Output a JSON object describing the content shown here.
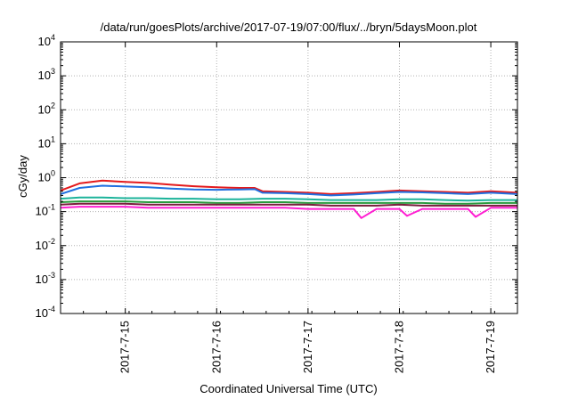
{
  "chart_data": {
    "type": "line",
    "title": "/data/run/goesPlots/archive/2017-07-19/07:00/flux/../bryn/5daysMoon.plot",
    "xlabel": "Coordinated Universal Time (UTC)",
    "ylabel": "cGy/day",
    "y_scale": "log",
    "ylim": [
      0.0001,
      10000
    ],
    "xlim": [
      "2017-07-14 07:00",
      "2017-07-19 07:00"
    ],
    "grid": true,
    "y_ticks": [
      {
        "value": 0.0001,
        "base": "10",
        "exp": "-4"
      },
      {
        "value": 0.001,
        "base": "10",
        "exp": "-3"
      },
      {
        "value": 0.01,
        "base": "10",
        "exp": "-2"
      },
      {
        "value": 0.1,
        "base": "10",
        "exp": "-1"
      },
      {
        "value": 1,
        "base": "10",
        "exp": "0"
      },
      {
        "value": 10,
        "base": "10",
        "exp": "1"
      },
      {
        "value": 100,
        "base": "10",
        "exp": "2"
      },
      {
        "value": 1000,
        "base": "10",
        "exp": "3"
      },
      {
        "value": 10000,
        "base": "10",
        "exp": "4"
      }
    ],
    "x_ticks": [
      {
        "value": "2017-07-15 00:00",
        "label": "2017-7-15"
      },
      {
        "value": "2017-07-16 00:00",
        "label": "2017-7-16"
      },
      {
        "value": "2017-07-17 00:00",
        "label": "2017-7-17"
      },
      {
        "value": "2017-07-18 00:00",
        "label": "2017-7-18"
      },
      {
        "value": "2017-07-19 00:00",
        "label": "2017-7-19"
      }
    ],
    "series": [
      {
        "color": "#e41a1c",
        "x": [
          "2017-07-14 07:00",
          "2017-07-14 12:00",
          "2017-07-14 18:00",
          "2017-07-15 00:00",
          "2017-07-15 06:00",
          "2017-07-15 12:00",
          "2017-07-15 18:00",
          "2017-07-16 00:00",
          "2017-07-16 06:00",
          "2017-07-16 10:00",
          "2017-07-16 12:00",
          "2017-07-16 18:00",
          "2017-07-17 00:00",
          "2017-07-17 06:00",
          "2017-07-17 12:00",
          "2017-07-17 18:00",
          "2017-07-18 00:00",
          "2017-07-18 06:00",
          "2017-07-18 12:00",
          "2017-07-18 18:00",
          "2017-07-19 00:00",
          "2017-07-19 07:00"
        ],
        "y": [
          0.42,
          0.68,
          0.82,
          0.75,
          0.7,
          0.62,
          0.56,
          0.52,
          0.5,
          0.5,
          0.4,
          0.38,
          0.36,
          0.33,
          0.35,
          0.38,
          0.42,
          0.4,
          0.38,
          0.36,
          0.4,
          0.36
        ]
      },
      {
        "color": "#1f6fe0",
        "x": [
          "2017-07-14 07:00",
          "2017-07-14 12:00",
          "2017-07-14 18:00",
          "2017-07-15 00:00",
          "2017-07-15 06:00",
          "2017-07-15 12:00",
          "2017-07-15 18:00",
          "2017-07-16 00:00",
          "2017-07-16 06:00",
          "2017-07-16 10:00",
          "2017-07-16 12:00",
          "2017-07-16 18:00",
          "2017-07-17 00:00",
          "2017-07-17 06:00",
          "2017-07-17 12:00",
          "2017-07-17 18:00",
          "2017-07-18 00:00",
          "2017-07-18 06:00",
          "2017-07-18 12:00",
          "2017-07-18 18:00",
          "2017-07-19 00:00",
          "2017-07-19 07:00"
        ],
        "y": [
          0.33,
          0.5,
          0.58,
          0.55,
          0.52,
          0.48,
          0.45,
          0.44,
          0.45,
          0.46,
          0.36,
          0.35,
          0.33,
          0.3,
          0.32,
          0.35,
          0.38,
          0.37,
          0.35,
          0.33,
          0.36,
          0.33
        ]
      },
      {
        "color": "#1bb39a",
        "x": [
          "2017-07-14 07:00",
          "2017-07-14 12:00",
          "2017-07-14 18:00",
          "2017-07-15 00:00",
          "2017-07-15 06:00",
          "2017-07-15 12:00",
          "2017-07-15 18:00",
          "2017-07-16 00:00",
          "2017-07-16 06:00",
          "2017-07-16 12:00",
          "2017-07-16 18:00",
          "2017-07-17 00:00",
          "2017-07-17 06:00",
          "2017-07-17 12:00",
          "2017-07-17 18:00",
          "2017-07-18 00:00",
          "2017-07-18 06:00",
          "2017-07-18 12:00",
          "2017-07-18 18:00",
          "2017-07-19 00:00",
          "2017-07-19 07:00"
        ],
        "y": [
          0.24,
          0.26,
          0.26,
          0.25,
          0.25,
          0.24,
          0.24,
          0.23,
          0.23,
          0.24,
          0.24,
          0.23,
          0.22,
          0.22,
          0.22,
          0.23,
          0.23,
          0.22,
          0.21,
          0.22,
          0.22
        ]
      },
      {
        "color": "#2a9a3e",
        "x": [
          "2017-07-14 07:00",
          "2017-07-14 12:00",
          "2017-07-14 18:00",
          "2017-07-15 00:00",
          "2017-07-15 06:00",
          "2017-07-15 12:00",
          "2017-07-15 18:00",
          "2017-07-16 00:00",
          "2017-07-16 06:00",
          "2017-07-16 12:00",
          "2017-07-16 18:00",
          "2017-07-17 00:00",
          "2017-07-17 06:00",
          "2017-07-17 12:00",
          "2017-07-17 18:00",
          "2017-07-18 00:00",
          "2017-07-18 06:00",
          "2017-07-18 12:00",
          "2017-07-18 18:00",
          "2017-07-19 00:00",
          "2017-07-19 07:00"
        ],
        "y": [
          0.19,
          0.2,
          0.2,
          0.2,
          0.19,
          0.19,
          0.19,
          0.18,
          0.18,
          0.19,
          0.19,
          0.18,
          0.18,
          0.18,
          0.18,
          0.18,
          0.18,
          0.17,
          0.17,
          0.18,
          0.18
        ]
      },
      {
        "color": "#7a1f3d",
        "x": [
          "2017-07-14 07:00",
          "2017-07-14 12:00",
          "2017-07-14 18:00",
          "2017-07-15 00:00",
          "2017-07-15 06:00",
          "2017-07-15 12:00",
          "2017-07-15 18:00",
          "2017-07-16 00:00",
          "2017-07-16 06:00",
          "2017-07-16 12:00",
          "2017-07-16 18:00",
          "2017-07-17 00:00",
          "2017-07-17 06:00",
          "2017-07-17 12:00",
          "2017-07-17 18:00",
          "2017-07-18 00:00",
          "2017-07-18 06:00",
          "2017-07-18 12:00",
          "2017-07-18 18:00",
          "2017-07-19 00:00",
          "2017-07-19 07:00"
        ],
        "y": [
          0.16,
          0.17,
          0.17,
          0.17,
          0.16,
          0.16,
          0.16,
          0.16,
          0.16,
          0.16,
          0.16,
          0.16,
          0.15,
          0.15,
          0.15,
          0.16,
          0.15,
          0.15,
          0.15,
          0.15,
          0.15
        ]
      },
      {
        "color": "#ff1fd2",
        "x": [
          "2017-07-14 07:00",
          "2017-07-14 12:00",
          "2017-07-14 18:00",
          "2017-07-15 00:00",
          "2017-07-15 06:00",
          "2017-07-15 12:00",
          "2017-07-15 18:00",
          "2017-07-16 00:00",
          "2017-07-16 06:00",
          "2017-07-16 12:00",
          "2017-07-16 18:00",
          "2017-07-17 00:00",
          "2017-07-17 06:00",
          "2017-07-17 12:00",
          "2017-07-17 14:00",
          "2017-07-17 18:00",
          "2017-07-18 00:00",
          "2017-07-18 02:00",
          "2017-07-18 06:00",
          "2017-07-18 12:00",
          "2017-07-18 18:00",
          "2017-07-18 20:00",
          "2017-07-19 00:00",
          "2017-07-19 07:00"
        ],
        "y": [
          0.13,
          0.14,
          0.14,
          0.14,
          0.13,
          0.13,
          0.13,
          0.13,
          0.13,
          0.13,
          0.13,
          0.12,
          0.12,
          0.12,
          0.065,
          0.12,
          0.12,
          0.075,
          0.12,
          0.12,
          0.12,
          0.07,
          0.13,
          0.13
        ]
      }
    ]
  }
}
